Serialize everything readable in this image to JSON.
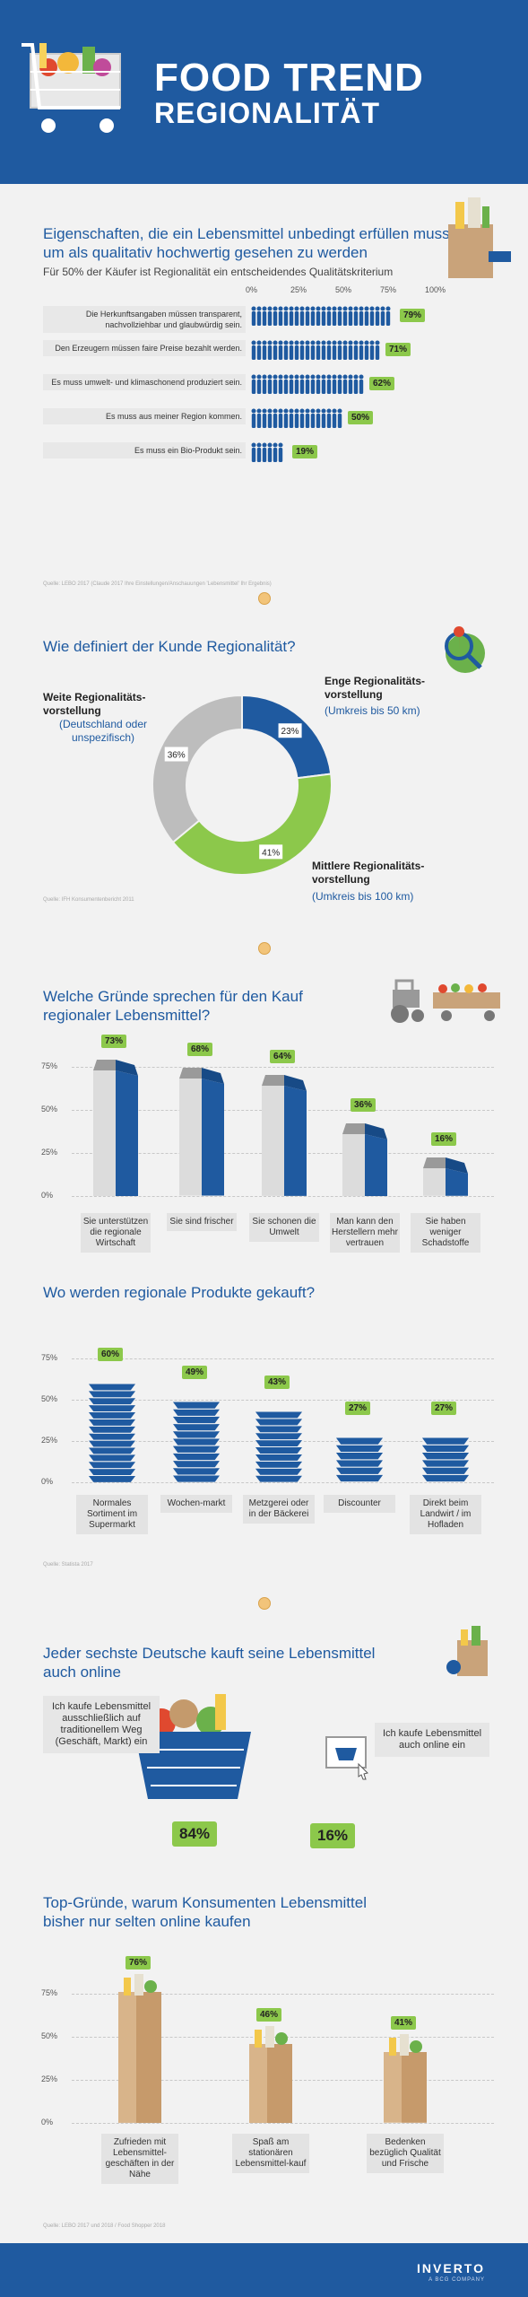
{
  "header": {
    "title_line1": "FOOD TREND",
    "title_line2": "REGIONALITÄT",
    "bg_color": "#1f5aa0"
  },
  "section1": {
    "title": "Eigenschaften, die ein Lebensmittel unbedingt erfüllen muss, um als qualitativ hochwertig gesehen zu werden",
    "subtitle": "Für 50% der Käufer ist Regionalität ein entscheidendes Qualitätskriterium",
    "source": "Quelle: LEBO 2017 (Claude 2017 Ihre Einstellungen/Anschauungen 'Lebensmittel' Ihr Ergebnis)",
    "icon": "grocery-bag-icon"
  },
  "section2": {
    "title": "Wie definiert der Kunde Regionalität?",
    "source": "Quelle: IFH Konsumentenbericht 2011",
    "icon": "map-pin-icon",
    "labels": {
      "weite_title": "Weite Regionalitäts-vorstellung",
      "weite_sub": "(Deutschland oder unspezifisch)",
      "enge_title": "Enge Regionalitäts-vorstellung",
      "enge_sub": "(Umkreis bis 50 km)",
      "mittlere_title": "Mittlere Regionalitäts-vorstellung",
      "mittlere_sub": "(Umkreis bis 100 km)"
    }
  },
  "section3": {
    "title": "Welche Gründe sprechen für den Kauf regionaler Lebensmittel?",
    "icon": "tractor-icon"
  },
  "section4": {
    "title": "Wo werden regionale Produkte gekauft?",
    "source": "Quelle: Statista 2017",
    "icon": "shopping-basket-icon"
  },
  "section5": {
    "title": "Jeder sechste Deutsche kauft seine Lebensmittel auch online",
    "offline_label": "Ich kaufe Lebensmittel ausschließlich auf traditionellem Weg (Geschäft, Markt) ein",
    "offline_pct": "84%",
    "online_label": "Ich kaufe Lebensmittel auch online ein",
    "online_pct": "16%",
    "icon": "shopping-bag-icon"
  },
  "section6": {
    "title": "Top-Gründe, warum Konsumenten Lebensmittel bisher nur selten online kaufen",
    "source": "Quelle: LEBO 2017 und 2018 / Food Shopper 2018"
  },
  "footer": {
    "logo": "INVERTO",
    "logo_sub": "A BCG COMPANY"
  },
  "colors": {
    "blue": "#1f5aa0",
    "green": "#8cc84b",
    "gray": "#bdbdbd"
  },
  "chart_data": [
    {
      "type": "bar",
      "orientation": "horizontal",
      "categories": [
        "Die Herkunftsangaben müssen transparent, nachvollziehbar und glaubwürdig sein.",
        "Den Erzeugern müssen faire Preise bezahlt werden.",
        "Es muss umwelt- und klimaschonend produziert sein.",
        "Es muss aus meiner Region kommen.",
        "Es muss ein Bio-Produkt sein."
      ],
      "values": [
        79,
        71,
        62,
        50,
        19
      ],
      "value_labels": [
        "79%",
        "71%",
        "62%",
        "50%",
        "19%"
      ],
      "ticks": [
        "0%",
        "25%",
        "50%",
        "75%",
        "100%"
      ],
      "xlim": [
        0,
        100
      ]
    },
    {
      "type": "pie",
      "donut": true,
      "categories": [
        "Enge Regionalitäts-vorstellung",
        "Mittlere Regionalitäts-vorstellung",
        "Weite Regionalitäts-vorstellung"
      ],
      "values": [
        23,
        41,
        36
      ],
      "value_labels": [
        "23%",
        "41%",
        "36%"
      ],
      "colors": [
        "#1f5aa0",
        "#8cc84b",
        "#bdbdbd"
      ]
    },
    {
      "type": "bar",
      "categories": [
        "Sie unterstützen die regionale Wirtschaft",
        "Sie sind frischer",
        "Sie schonen die Umwelt",
        "Man kann den Herstellern mehr vertrauen",
        "Sie haben weniger Schadstoffe"
      ],
      "values": [
        73,
        68,
        64,
        36,
        16
      ],
      "value_labels": [
        "73%",
        "68%",
        "64%",
        "36%",
        "16%"
      ],
      "ticks": [
        "75%",
        "50%",
        "25%",
        "0%"
      ],
      "ylim": [
        0,
        80
      ]
    },
    {
      "type": "bar",
      "categories": [
        "Normales Sortiment im Supermarkt",
        "Wochen-markt",
        "Metzgerei oder in der Bäckerei",
        "Discounter",
        "Direkt beim Landwirt / im Hofladen"
      ],
      "values": [
        60,
        49,
        43,
        27,
        27
      ],
      "value_labels": [
        "60%",
        "49%",
        "43%",
        "27%",
        "27%"
      ],
      "ticks": [
        "75%",
        "50%",
        "25%",
        "0%"
      ],
      "ylim": [
        0,
        75
      ]
    },
    {
      "type": "bar",
      "categories": [
        "Zufrieden mit Lebensmittel-geschäften in der Nähe",
        "Spaß am stationären Lebensmittel-kauf",
        "Bedenken bezüglich Qualität und Frische"
      ],
      "values": [
        76,
        46,
        41
      ],
      "value_labels": [
        "76%",
        "46%",
        "41%"
      ],
      "ticks": [
        "75%",
        "50%",
        "25%",
        "0%"
      ],
      "ylim": [
        0,
        80
      ]
    }
  ]
}
